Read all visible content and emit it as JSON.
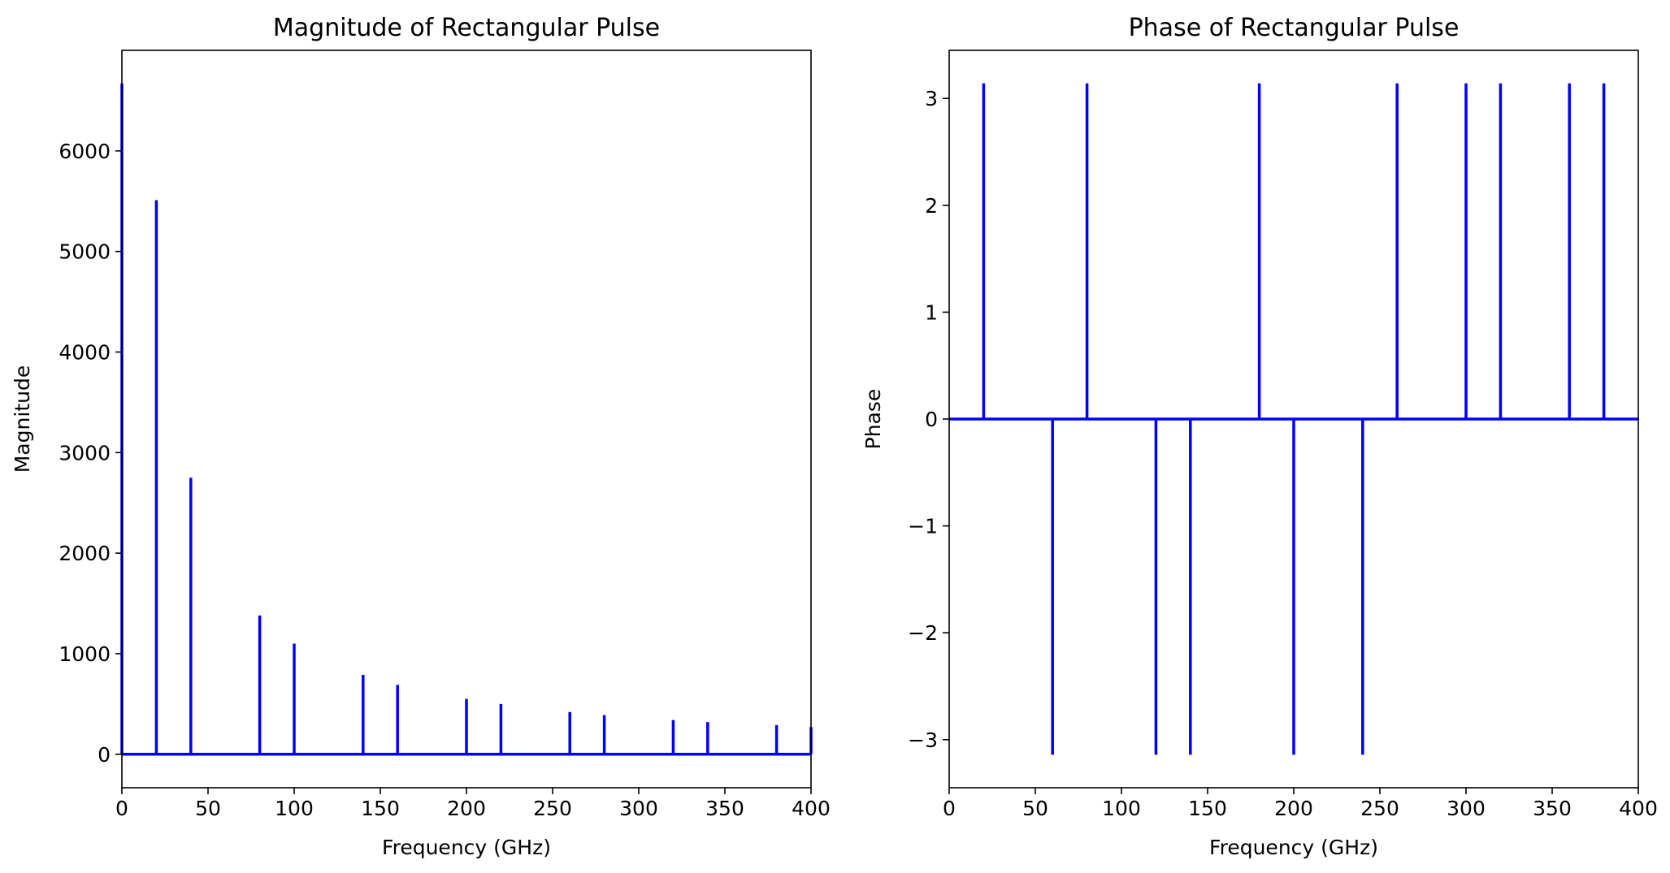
{
  "chart_data": [
    {
      "type": "stem",
      "title": "Magnitude of Rectangular Pulse",
      "xlabel": "Frequency (GHz)",
      "ylabel": "Magnitude",
      "xlim": [
        0,
        400
      ],
      "ylim": [
        -333,
        7000
      ],
      "xticks": [
        0,
        50,
        100,
        150,
        200,
        250,
        300,
        350,
        400
      ],
      "xtick_labels": [
        "0",
        "50",
        "100",
        "150",
        "200",
        "250",
        "300",
        "350",
        "400"
      ],
      "yticks": [
        0,
        1000,
        2000,
        3000,
        4000,
        5000,
        6000
      ],
      "ytick_labels": [
        "0",
        "1000",
        "2000",
        "3000",
        "4000",
        "5000",
        "6000"
      ],
      "grid": false,
      "color": "#0000ff",
      "baseline": 0,
      "x": [
        0,
        20,
        40,
        80,
        100,
        140,
        160,
        200,
        220,
        260,
        280,
        320,
        340,
        380,
        400
      ],
      "y": [
        6670,
        5510,
        2750,
        1380,
        1100,
        790,
        690,
        550,
        500,
        420,
        390,
        340,
        320,
        290,
        270
      ]
    },
    {
      "type": "stem",
      "title": "Phase of Rectangular Pulse",
      "xlabel": "Frequency (GHz)",
      "ylabel": "Phase",
      "xlim": [
        0,
        400
      ],
      "ylim": [
        -3.45,
        3.45
      ],
      "xticks": [
        0,
        50,
        100,
        150,
        200,
        250,
        300,
        350,
        400
      ],
      "xtick_labels": [
        "0",
        "50",
        "100",
        "150",
        "200",
        "250",
        "300",
        "350",
        "400"
      ],
      "yticks": [
        -3,
        -2,
        -1,
        0,
        1,
        2,
        3
      ],
      "ytick_labels": [
        "−3",
        "−2",
        "−1",
        "0",
        "1",
        "2",
        "3"
      ],
      "grid": false,
      "color": "#0000ff",
      "baseline": 0,
      "x": [
        20,
        60,
        80,
        120,
        140,
        180,
        200,
        240,
        260,
        300,
        320,
        360,
        380
      ],
      "y": [
        3.14159,
        -3.14159,
        3.14159,
        -3.14159,
        -3.14159,
        3.14159,
        -3.14159,
        -3.14159,
        3.14159,
        3.14159,
        3.14159,
        3.14159,
        3.14159
      ]
    }
  ]
}
